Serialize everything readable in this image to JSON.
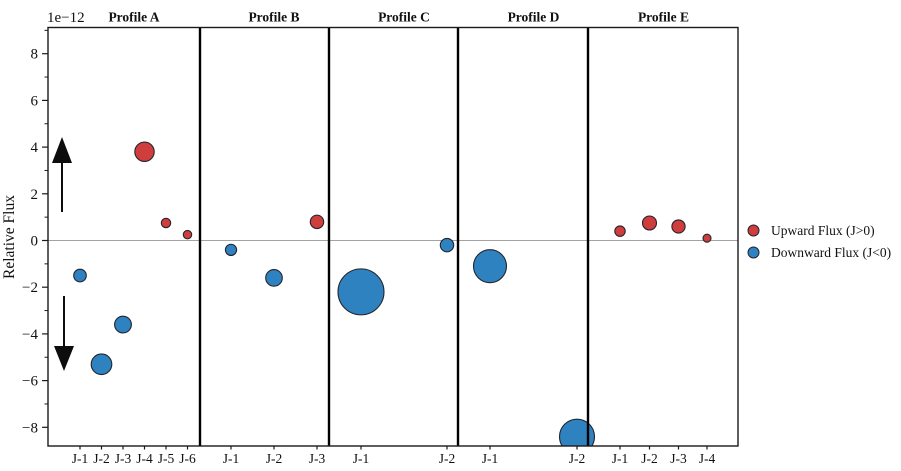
{
  "figure": {
    "ylabel": "Relative Flux",
    "offset_text": "1e−12",
    "legend": [
      {
        "label": "Upward Flux (J>0)",
        "series": "up"
      },
      {
        "label": "Downward Flux (J<0)",
        "series": "down"
      }
    ]
  },
  "colors": {
    "up_fill": "#cf3d3d",
    "down_fill": "#2e82c0",
    "marker_edge": "#24242e",
    "frame": "#1a1a1a",
    "divider": "#000000",
    "zero_line": "#a3a3a3",
    "tick": "#1a1a1a",
    "arrow": "#0d0d0d"
  },
  "chart_data": {
    "type": "scatter",
    "title": "",
    "xlabel": "",
    "ylabel": "Relative Flux",
    "y_offset_factor": "1e−12",
    "ylim": [
      -8.8,
      9.1
    ],
    "y_major_ticks": [
      8,
      6,
      4,
      2,
      0,
      -2,
      -4,
      -6,
      -8
    ],
    "y_minor_tick_step": 1,
    "grid": "off",
    "zero_line": 0,
    "legend_position": "outside-right",
    "annotations": [
      "up-arrow",
      "down-arrow"
    ],
    "series_names": [
      "Upward Flux (J>0)",
      "Downward Flux (J<0)"
    ],
    "panels": [
      {
        "header": "Profile A",
        "categories": [
          "J-1",
          "J-2",
          "J-3",
          "J-4",
          "J-5",
          "J-6"
        ],
        "points": [
          {
            "x": "J-1",
            "y": -1.5,
            "series": "down",
            "size_r": 6.3
          },
          {
            "x": "J-2",
            "y": -5.3,
            "series": "down",
            "size_r": 10.3
          },
          {
            "x": "J-3",
            "y": -3.6,
            "series": "down",
            "size_r": 8.4
          },
          {
            "x": "J-4",
            "y": 3.8,
            "series": "up",
            "size_r": 9.7
          },
          {
            "x": "J-5",
            "y": 0.75,
            "series": "up",
            "size_r": 4.7
          },
          {
            "x": "J-6",
            "y": 0.25,
            "series": "up",
            "size_r": 4.2
          }
        ]
      },
      {
        "header": "Profile B",
        "categories": [
          "J-1",
          "J-2",
          "J-3"
        ],
        "points": [
          {
            "x": "J-1",
            "y": -0.4,
            "series": "down",
            "size_r": 5.6
          },
          {
            "x": "J-2",
            "y": -1.6,
            "series": "down",
            "size_r": 8.3
          },
          {
            "x": "J-3",
            "y": 0.8,
            "series": "up",
            "size_r": 6.7
          }
        ]
      },
      {
        "header": "Profile C",
        "categories": [
          "J-1",
          "J-2"
        ],
        "points": [
          {
            "x": "J-1",
            "y": -2.2,
            "series": "down",
            "size_r": 23
          },
          {
            "x": "J-2",
            "y": -0.2,
            "series": "down",
            "size_r": 6.7
          }
        ]
      },
      {
        "header": "Profile D",
        "categories": [
          "J-1",
          "J-2"
        ],
        "points": [
          {
            "x": "J-1",
            "y": -1.1,
            "series": "down",
            "size_r": 16.5
          },
          {
            "x": "J-2",
            "y": -8.4,
            "series": "down",
            "size_r": 17.5
          }
        ]
      },
      {
        "header": "Profile E",
        "categories": [
          "J-1",
          "J-2",
          "J-3",
          "J-4"
        ],
        "points": [
          {
            "x": "J-1",
            "y": 0.4,
            "series": "up",
            "size_r": 5.2
          },
          {
            "x": "J-2",
            "y": 0.75,
            "series": "up",
            "size_r": 7.0
          },
          {
            "x": "J-3",
            "y": 0.6,
            "series": "up",
            "size_r": 6.6
          },
          {
            "x": "J-4",
            "y": 0.1,
            "series": "up",
            "size_r": 4.0
          }
        ]
      }
    ]
  }
}
